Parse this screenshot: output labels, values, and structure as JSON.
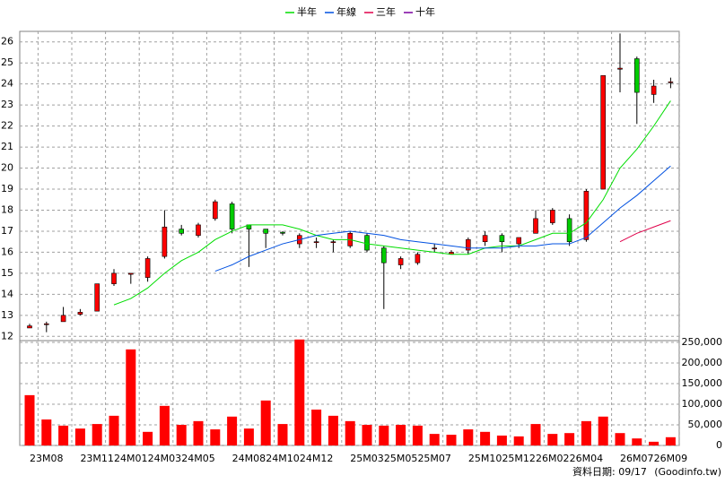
{
  "chart_data": {
    "type": "candlestick",
    "legend_position": "top",
    "categories": [
      null,
      "23M08",
      null,
      null,
      "23M11",
      null,
      "24M01",
      null,
      "24M03",
      null,
      "24M05",
      null,
      null,
      "24M08",
      null,
      "24M10",
      null,
      "24M12",
      null,
      null,
      "25M03",
      null,
      "25M05",
      null,
      "25M07",
      null,
      null,
      "25M10",
      null,
      "25M12",
      null,
      "26M02",
      null,
      "26M04",
      null,
      null,
      "26M07",
      null,
      "26M09"
    ],
    "open": [
      12.4,
      12.6,
      12.7,
      13.05,
      13.2,
      14.5,
      14.95,
      14.8,
      15.8,
      17.1,
      16.8,
      17.6,
      18.3,
      17.3,
      17.1,
      16.95,
      16.4,
      16.5,
      16.5,
      16.3,
      16.8,
      16.2,
      15.4,
      15.5,
      16.2,
      15.9,
      16.1,
      16.5,
      16.8,
      16.4,
      16.9,
      17.4,
      17.6,
      16.6,
      19.0,
      24.7,
      25.2,
      23.5,
      24.1
    ],
    "high": [
      12.6,
      12.7,
      13.4,
      13.3,
      14.5,
      15.2,
      15.0,
      15.8,
      18.0,
      17.3,
      17.4,
      18.5,
      18.4,
      17.3,
      17.1,
      17.0,
      16.9,
      16.7,
      16.6,
      17.0,
      16.9,
      16.3,
      15.8,
      16.0,
      16.4,
      16.1,
      16.7,
      17.0,
      16.9,
      16.7,
      18.0,
      18.1,
      17.8,
      19.0,
      24.4,
      26.4,
      25.3,
      24.2,
      24.3
    ],
    "low": [
      12.4,
      12.2,
      12.7,
      13.0,
      13.2,
      14.4,
      14.5,
      14.6,
      15.7,
      16.8,
      16.7,
      17.5,
      16.9,
      15.3,
      16.2,
      16.8,
      16.2,
      16.2,
      16.0,
      16.2,
      16.0,
      13.3,
      15.2,
      15.4,
      16.0,
      15.9,
      15.9,
      16.3,
      16.0,
      16.2,
      16.9,
      17.3,
      16.3,
      16.5,
      19.0,
      23.6,
      22.1,
      23.1,
      23.8
    ],
    "close": [
      12.5,
      12.6,
      13.0,
      13.15,
      14.5,
      15.0,
      15.0,
      15.7,
      17.2,
      16.9,
      17.3,
      18.4,
      17.1,
      17.1,
      16.9,
      16.9,
      16.8,
      16.5,
      16.5,
      16.9,
      16.1,
      15.5,
      15.7,
      15.9,
      16.2,
      16.0,
      16.6,
      16.8,
      16.5,
      16.7,
      17.6,
      18.0,
      16.5,
      18.9,
      24.4,
      24.75,
      23.6,
      23.9,
      24.1
    ],
    "up_color": "#ff0000",
    "down_color": "#00cc00",
    "series": [
      {
        "name": "半年",
        "color": "#00dd00",
        "values": [
          null,
          null,
          null,
          null,
          null,
          13.5,
          13.8,
          14.3,
          15.0,
          15.6,
          16.0,
          16.6,
          17.0,
          17.3,
          17.3,
          17.3,
          17.1,
          16.8,
          16.6,
          16.6,
          16.4,
          16.3,
          16.2,
          16.1,
          16.0,
          15.9,
          15.9,
          16.2,
          16.3,
          16.3,
          16.6,
          16.9,
          16.9,
          17.4,
          18.5,
          20.0,
          20.9,
          22.0,
          23.2
        ]
      },
      {
        "name": "年線",
        "color": "#0050e0",
        "values": [
          null,
          null,
          null,
          null,
          null,
          null,
          null,
          null,
          null,
          null,
          null,
          15.1,
          15.4,
          15.8,
          16.1,
          16.4,
          16.6,
          16.8,
          16.9,
          17.0,
          16.9,
          16.8,
          16.6,
          16.5,
          16.4,
          16.3,
          16.2,
          16.2,
          16.2,
          16.3,
          16.3,
          16.4,
          16.4,
          16.7,
          17.4,
          18.1,
          18.7,
          19.4,
          20.1
        ]
      },
      {
        "name": "三年",
        "color": "#e0004a",
        "values": [
          null,
          null,
          null,
          null,
          null,
          null,
          null,
          null,
          null,
          null,
          null,
          null,
          null,
          null,
          null,
          null,
          null,
          null,
          null,
          null,
          null,
          null,
          null,
          null,
          null,
          null,
          null,
          null,
          null,
          null,
          null,
          null,
          null,
          null,
          null,
          16.5,
          16.9,
          17.2,
          17.5
        ]
      },
      {
        "name": "十年",
        "color": "#7a00a0",
        "values": [
          null,
          null,
          null,
          null,
          null,
          null,
          null,
          null,
          null,
          null,
          null,
          null,
          null,
          null,
          null,
          null,
          null,
          null,
          null,
          null,
          null,
          null,
          null,
          null,
          null,
          null,
          null,
          null,
          null,
          null,
          null,
          null,
          null,
          null,
          null,
          null,
          null,
          null,
          null
        ]
      }
    ],
    "ylim": [
      11.8,
      26.5
    ],
    "yticks": [
      12,
      13,
      14,
      15,
      16,
      17,
      18,
      19,
      20,
      21,
      22,
      23,
      24,
      25,
      26
    ],
    "grid": true,
    "volume": {
      "color": "#ff0000",
      "values": [
        122000,
        63000,
        48000,
        41000,
        52000,
        72000,
        233000,
        33000,
        96000,
        50000,
        59000,
        39000,
        70000,
        41000,
        109000,
        52000,
        257000,
        87000,
        72000,
        59000,
        50000,
        48000,
        50000,
        48000,
        28000,
        26000,
        39000,
        33000,
        24000,
        22000,
        52000,
        28000,
        30000,
        59000,
        70000,
        30000,
        17000,
        9000,
        20000
      ],
      "ylim": [
        0,
        250000
      ],
      "yticks": [
        0,
        {
          "value": 50000,
          "label": "50,000"
        },
        {
          "value": 100000,
          "label": "100,000"
        },
        {
          "value": 150000,
          "label": "150,000"
        },
        {
          "value": 200000,
          "label": "200,000"
        },
        {
          "value": 250000,
          "label": "250,000"
        }
      ]
    },
    "footer_date": "資料日期: 09/17",
    "source": "(Goodinfo.tw)"
  }
}
